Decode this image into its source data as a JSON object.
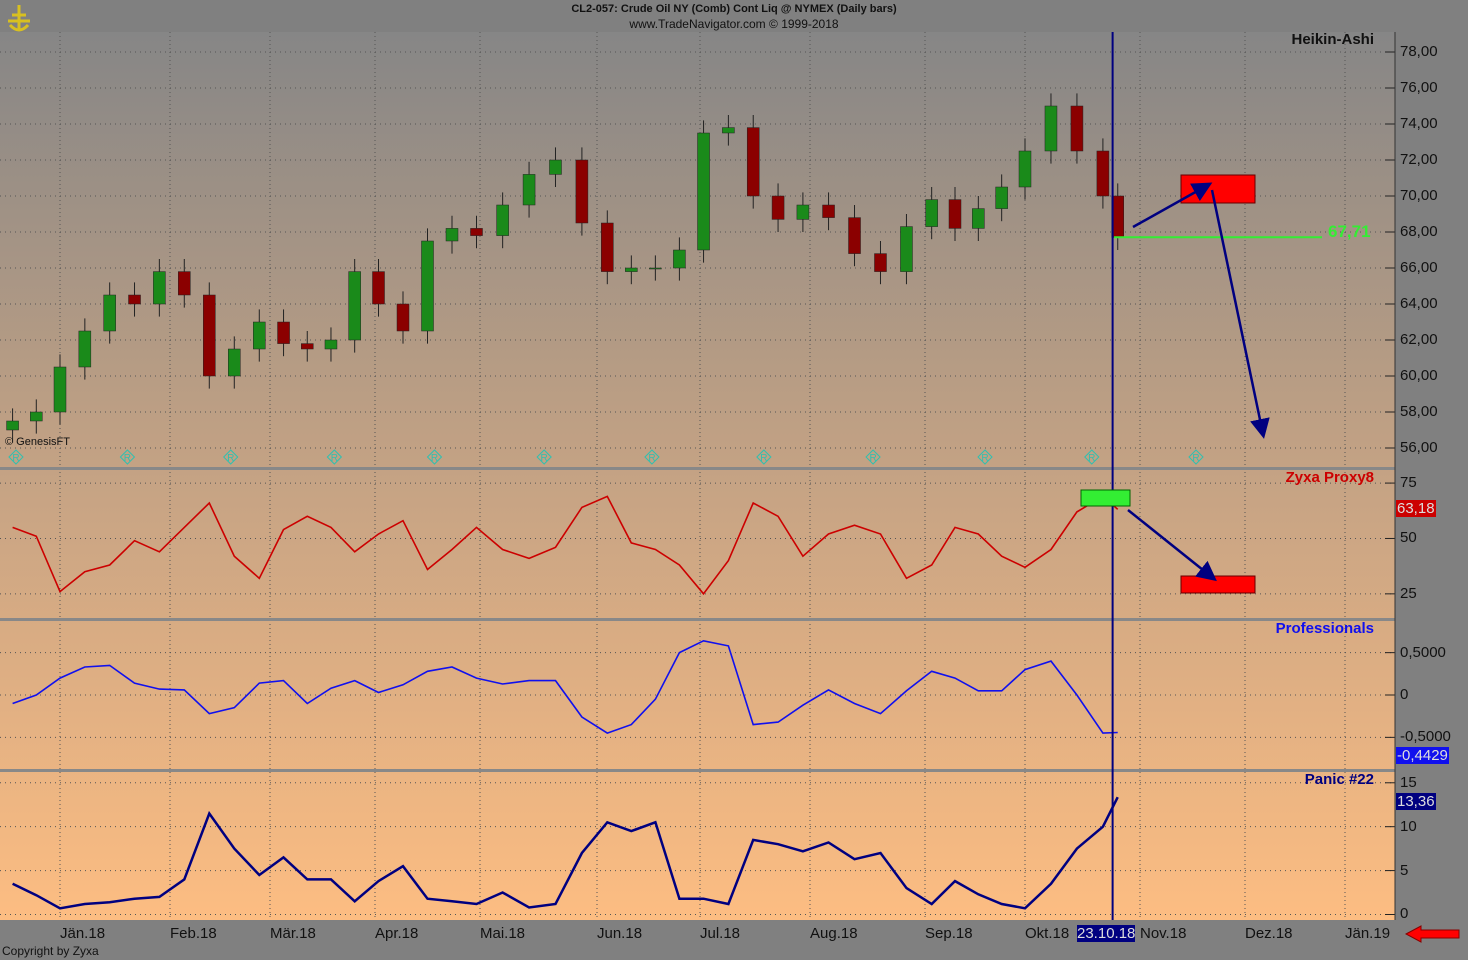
{
  "header": {
    "title": "CL2-057:  Crude Oil NY (Comb) Cont Liq @ NYMEX  (Daily bars)",
    "subtitle": "www.TradeNavigator.com © 1999-2018"
  },
  "footer": {
    "copyright": "Copyright by Zyxa",
    "source": "© GenesisFT"
  },
  "colors": {
    "price_up": "#1a8a1a",
    "price_down": "#8b0000",
    "proxy": "#cc0000",
    "professionals": "#1010ee",
    "panic": "#000080",
    "cursor": "#000080",
    "level_line": "#33ee33",
    "box_red": "#ff0000",
    "box_green": "#33ee33",
    "arrow": "#000080"
  },
  "chart_data": [
    {
      "type": "candlestick",
      "title": "Heikin-Ashi",
      "ylim": [
        55,
        79
      ],
      "yticks": [
        "56,00",
        "58,00",
        "60,00",
        "62,00",
        "64,00",
        "66,00",
        "68,00",
        "70,00",
        "72,00",
        "74,00",
        "76,00",
        "78,00"
      ],
      "ytick_values": [
        56,
        58,
        60,
        62,
        64,
        66,
        68,
        70,
        72,
        74,
        76,
        78
      ],
      "dates": [
        "2017-12-18",
        "2017-12-25",
        "2018-01-01",
        "2018-01-08",
        "2018-01-15",
        "2018-01-22",
        "2018-01-29",
        "2018-02-05",
        "2018-02-12",
        "2018-02-19",
        "2018-02-26",
        "2018-03-05",
        "2018-03-12",
        "2018-03-19",
        "2018-03-26",
        "2018-04-02",
        "2018-04-09",
        "2018-04-16",
        "2018-04-23",
        "2018-04-30",
        "2018-05-07",
        "2018-05-14",
        "2018-05-21",
        "2018-05-28",
        "2018-06-04",
        "2018-06-11",
        "2018-06-18",
        "2018-06-25",
        "2018-07-02",
        "2018-07-09",
        "2018-07-16",
        "2018-07-23",
        "2018-07-30",
        "2018-08-06",
        "2018-08-13",
        "2018-08-20",
        "2018-08-27",
        "2018-09-03",
        "2018-09-10",
        "2018-09-17",
        "2018-09-24",
        "2018-10-01",
        "2018-10-08",
        "2018-10-15",
        "2018-10-22",
        "2018-10-26"
      ],
      "close": [
        57.5,
        58,
        60.5,
        62.5,
        64.5,
        64,
        65.8,
        64.5,
        60,
        61.5,
        63,
        61.8,
        61.5,
        62,
        65.8,
        64,
        62.5,
        67.5,
        68.2,
        67.8,
        69.5,
        71.2,
        72,
        68.5,
        65.8,
        66,
        66,
        67,
        73.5,
        73.8,
        70,
        68.7,
        69.5,
        68.8,
        66.8,
        65.8,
        68.3,
        69.8,
        68.2,
        69.3,
        70.5,
        72.5,
        75,
        72.5,
        70,
        67.7
      ],
      "level_line": {
        "value": 67.71,
        "label": "67,71"
      },
      "marker_label": "R",
      "marker_dates": [
        "2017-12-19",
        "2018-01-20",
        "2018-02-18",
        "2018-03-20",
        "2018-04-18",
        "2018-05-18",
        "2018-06-17",
        "2018-07-19",
        "2018-08-18",
        "2018-09-19",
        "2018-10-19",
        "2018-11-17"
      ]
    },
    {
      "type": "line",
      "title": "Zyxa Proxy8",
      "ylim": [
        15,
        80
      ],
      "yticks": [
        "25",
        "50",
        "75"
      ],
      "ytick_values": [
        25,
        50,
        75
      ],
      "values": [
        55,
        51,
        26,
        35,
        38,
        49,
        44,
        55,
        66,
        42,
        32,
        54,
        60,
        55,
        44,
        52,
        58,
        36,
        45,
        55,
        45,
        41,
        46,
        64,
        69,
        48,
        45,
        38,
        25,
        40,
        66,
        60,
        42,
        52,
        56,
        52,
        32,
        38,
        55,
        52,
        42,
        37,
        45,
        62,
        69,
        63.18
      ],
      "last_label": "63,18"
    },
    {
      "type": "line",
      "title": "Professionals",
      "ylim": [
        -0.85,
        0.85
      ],
      "yticks": [
        "0,5000",
        "0",
        "-0,5000"
      ],
      "ytick_values": [
        0.5,
        0,
        -0.5
      ],
      "values": [
        -0.1,
        0,
        0.2,
        0.33,
        0.35,
        0.14,
        0.07,
        0.06,
        -0.22,
        -0.15,
        0.14,
        0.17,
        -0.1,
        0.08,
        0.17,
        0.03,
        0.12,
        0.28,
        0.33,
        0.2,
        0.13,
        0.17,
        0.17,
        -0.26,
        -0.45,
        -0.35,
        -0.05,
        0.5,
        0.64,
        0.58,
        -0.35,
        -0.32,
        -0.12,
        0.06,
        -0.1,
        -0.22,
        0.05,
        0.28,
        0.2,
        0.05,
        0.05,
        0.3,
        0.4,
        0,
        -0.45,
        -0.4429
      ],
      "last_label": "-0,4429"
    },
    {
      "type": "line",
      "title": "Panic #22",
      "ylim": [
        -0.4,
        16
      ],
      "yticks": [
        "0",
        "5",
        "10",
        "15"
      ],
      "ytick_values": [
        0,
        5,
        10,
        15
      ],
      "values": [
        3.5,
        2.2,
        0.7,
        1.2,
        1.4,
        1.8,
        2,
        4,
        11.5,
        7.5,
        4.5,
        6.5,
        4,
        4,
        1.5,
        3.8,
        5.5,
        1.8,
        1.5,
        1.2,
        2.5,
        0.8,
        1.2,
        7,
        10.5,
        9.5,
        10.5,
        1.8,
        1.8,
        1.2,
        8.5,
        8,
        7.2,
        8.2,
        6.3,
        7,
        3,
        1.2,
        3.8,
        2.3,
        1.2,
        0.7,
        3.5,
        7.5,
        10,
        13.36
      ],
      "last_label": "13,36"
    }
  ],
  "x_axis": {
    "labels": [
      {
        "date": "2018-01-01",
        "label": "Jän.18"
      },
      {
        "date": "2018-02-01",
        "label": "Feb.18"
      },
      {
        "date": "2018-03-01",
        "label": "Mär.18"
      },
      {
        "date": "2018-04-01",
        "label": "Apr.18"
      },
      {
        "date": "2018-05-01",
        "label": "Mai.18"
      },
      {
        "date": "2018-06-01",
        "label": "Jun.18"
      },
      {
        "date": "2018-07-01",
        "label": "Jul.18"
      },
      {
        "date": "2018-08-01",
        "label": "Aug.18"
      },
      {
        "date": "2018-09-01",
        "label": "Sep.18"
      },
      {
        "date": "2018-10-01",
        "label": "Okt.18"
      },
      {
        "date": "2018-11-01",
        "label": "Nov.18"
      },
      {
        "date": "2018-12-01",
        "label": "Dez.18"
      },
      {
        "date": "2019-01-01",
        "label": "Jän.19"
      }
    ],
    "cursor": {
      "date": "2018-10-23",
      "label": "23.10.18"
    }
  }
}
